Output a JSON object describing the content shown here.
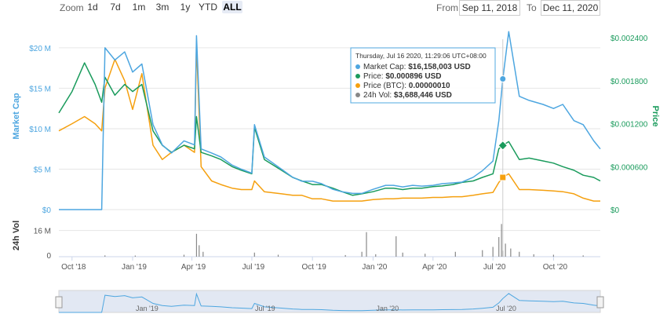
{
  "toolbar": {
    "zoom_label": "Zoom",
    "buttons": [
      "1d",
      "7d",
      "1m",
      "3m",
      "1y",
      "YTD",
      "ALL"
    ],
    "active": "ALL",
    "from_label": "From",
    "from_value": "Sep 11, 2018",
    "to_label": "To",
    "to_value": "Dec 11, 2020"
  },
  "tooltip": {
    "date": "Thursday, Jul 16 2020, 11:29:06 UTC+08:00",
    "rows": [
      {
        "label": "Market Cap: ",
        "value": "$16,158,003 USD"
      },
      {
        "label": "Price: ",
        "value": "$0.000896 USD"
      },
      {
        "label": "Price (BTC): ",
        "value": "0.00000010"
      },
      {
        "label": "24h Vol: ",
        "value": "$3,688,446 USD"
      }
    ]
  },
  "colors": {
    "market_cap": "#4da6e0",
    "price": "#1a9b5c",
    "price_btc": "#f5a00f",
    "volume": "#888888",
    "grid": "#e6e6e6",
    "navigator_fill": "#ccd6eb"
  },
  "chart_data": {
    "type": "line",
    "x_range": [
      "2018-09-11",
      "2020-12-11"
    ],
    "left_axis": {
      "label": "Market Cap",
      "ticks": [
        "$0",
        "$5 M",
        "$10 M",
        "$15 M",
        "$20 M"
      ],
      "ylim": [
        0,
        23000000
      ]
    },
    "right_axis": {
      "label": "Price",
      "ticks": [
        "$0",
        "$0.000600",
        "$0.001200",
        "$0.001800",
        "$0.002400"
      ],
      "ylim": [
        0,
        0.0026
      ]
    },
    "x_ticks": [
      "Oct '18",
      "Jan '19",
      "Apr '19",
      "Jul '19",
      "Oct '19",
      "Jan '20",
      "Apr '20",
      "Jul '20",
      "Oct '20"
    ],
    "x": [
      "2018-09-11",
      "2018-10-01",
      "2018-10-20",
      "2018-11-05",
      "2018-11-15",
      "2018-11-20",
      "2018-12-05",
      "2018-12-20",
      "2019-01-01",
      "2019-01-15",
      "2019-02-01",
      "2019-02-15",
      "2019-03-01",
      "2019-03-20",
      "2019-04-05",
      "2019-04-08",
      "2019-04-15",
      "2019-05-01",
      "2019-05-15",
      "2019-06-01",
      "2019-06-15",
      "2019-07-01",
      "2019-07-05",
      "2019-07-20",
      "2019-08-15",
      "2019-09-01",
      "2019-09-15",
      "2019-10-01",
      "2019-10-15",
      "2019-11-01",
      "2019-11-15",
      "2019-12-01",
      "2019-12-15",
      "2020-01-01",
      "2020-01-20",
      "2020-02-01",
      "2020-02-15",
      "2020-03-01",
      "2020-03-15",
      "2020-04-01",
      "2020-04-15",
      "2020-05-01",
      "2020-05-15",
      "2020-06-01",
      "2020-06-15",
      "2020-07-01",
      "2020-07-10",
      "2020-07-16",
      "2020-07-25",
      "2020-08-10",
      "2020-08-25",
      "2020-09-15",
      "2020-10-01",
      "2020-10-15",
      "2020-11-01",
      "2020-11-15",
      "2020-12-01",
      "2020-12-11"
    ],
    "series": [
      {
        "name": "Market Cap",
        "axis": "left",
        "values": [
          0,
          0,
          0,
          0,
          0,
          20000000,
          18500000,
          19500000,
          17000000,
          18000000,
          10500000,
          8000000,
          7000000,
          8500000,
          8000000,
          21500000,
          7500000,
          7000000,
          6500000,
          5500000,
          5000000,
          4500000,
          10500000,
          6500000,
          5000000,
          4000000,
          3500000,
          3500000,
          3200000,
          2500000,
          2200000,
          2000000,
          2000000,
          2500000,
          3000000,
          3000000,
          2800000,
          3000000,
          2900000,
          3000000,
          3200000,
          3300000,
          3400000,
          4000000,
          4800000,
          6000000,
          11000000,
          16158003,
          22000000,
          14000000,
          13500000,
          13000000,
          12500000,
          13000000,
          11000000,
          10500000,
          8500000,
          7500000
        ]
      },
      {
        "name": "Price",
        "axis": "right",
        "values": [
          0.00135,
          0.00165,
          0.00205,
          0.00175,
          0.0015,
          0.00185,
          0.0016,
          0.00175,
          0.00165,
          0.00175,
          0.0011,
          0.0009,
          0.0008,
          0.0009,
          0.00085,
          0.0013,
          0.0008,
          0.00075,
          0.0007,
          0.0006,
          0.00055,
          0.0005,
          0.00115,
          0.0007,
          0.00055,
          0.00045,
          0.0004,
          0.00035,
          0.00035,
          0.0003,
          0.00025,
          0.0002,
          0.00022,
          0.00025,
          0.0003,
          0.0003,
          0.00028,
          0.0003,
          0.0003,
          0.00032,
          0.00033,
          0.00035,
          0.00038,
          0.0004,
          0.00045,
          0.0005,
          0.00085,
          0.000896,
          0.00095,
          0.0007,
          0.00072,
          0.00068,
          0.00065,
          0.0006,
          0.00055,
          0.00048,
          0.00045,
          0.0004
        ]
      },
      {
        "name": "Price (BTC)",
        "axis": "right",
        "values": [
          0.0011,
          0.0012,
          0.0013,
          0.0012,
          0.0011,
          0.0017,
          0.0021,
          0.0018,
          0.0014,
          0.0019,
          0.0009,
          0.0007,
          0.0008,
          0.0009,
          0.0008,
          0.0023,
          0.0006,
          0.0004,
          0.00035,
          0.0003,
          0.00028,
          0.00028,
          0.0004,
          0.00025,
          0.00022,
          0.0002,
          0.0002,
          0.00015,
          0.00015,
          0.00012,
          0.00012,
          0.00012,
          0.00012,
          0.00014,
          0.00015,
          0.00015,
          0.00016,
          0.00016,
          0.00016,
          0.00017,
          0.00017,
          0.00018,
          0.00018,
          0.0002,
          0.00022,
          0.00024,
          0.00038,
          0.00045,
          0.0005,
          0.00028,
          0.00028,
          0.00027,
          0.00026,
          0.00025,
          0.00022,
          0.00016,
          0.00012,
          0.00012
        ]
      },
      {
        "name": "24h Vol",
        "axis": "vol",
        "ticks": [
          "0",
          "16 M"
        ],
        "ylim": [
          0,
          24000000
        ],
        "spikes": [
          {
            "x": "2018-11-20",
            "v": 800000
          },
          {
            "x": "2019-01-05",
            "v": 700000
          },
          {
            "x": "2019-03-20",
            "v": 1200000
          },
          {
            "x": "2019-04-08",
            "v": 14000000
          },
          {
            "x": "2019-04-12",
            "v": 7000000
          },
          {
            "x": "2019-04-18",
            "v": 3000000
          },
          {
            "x": "2019-07-05",
            "v": 2500000
          },
          {
            "x": "2019-08-10",
            "v": 1200000
          },
          {
            "x": "2019-11-20",
            "v": 1000000
          },
          {
            "x": "2019-12-15",
            "v": 3000000
          },
          {
            "x": "2019-12-22",
            "v": 15000000
          },
          {
            "x": "2020-01-05",
            "v": 1500000
          },
          {
            "x": "2020-02-05",
            "v": 12500000
          },
          {
            "x": "2020-02-15",
            "v": 2500000
          },
          {
            "x": "2020-03-20",
            "v": 1800000
          },
          {
            "x": "2020-05-05",
            "v": 3000000
          },
          {
            "x": "2020-06-15",
            "v": 4000000
          },
          {
            "x": "2020-07-01",
            "v": 6000000
          },
          {
            "x": "2020-07-10",
            "v": 12000000
          },
          {
            "x": "2020-07-14",
            "v": 20000000
          },
          {
            "x": "2020-07-16",
            "v": 3688446
          },
          {
            "x": "2020-07-20",
            "v": 8000000
          },
          {
            "x": "2020-07-28",
            "v": 5000000
          },
          {
            "x": "2020-08-10",
            "v": 3000000
          },
          {
            "x": "2020-09-01",
            "v": 1500000
          },
          {
            "x": "2020-10-01",
            "v": 1200000
          },
          {
            "x": "2020-11-15",
            "v": 800000
          }
        ]
      }
    ],
    "navigator_ticks": [
      "Jan '19",
      "Jul '19",
      "Jan '20",
      "Jul '20"
    ],
    "hover_x": "2020-07-16",
    "grid": true
  }
}
